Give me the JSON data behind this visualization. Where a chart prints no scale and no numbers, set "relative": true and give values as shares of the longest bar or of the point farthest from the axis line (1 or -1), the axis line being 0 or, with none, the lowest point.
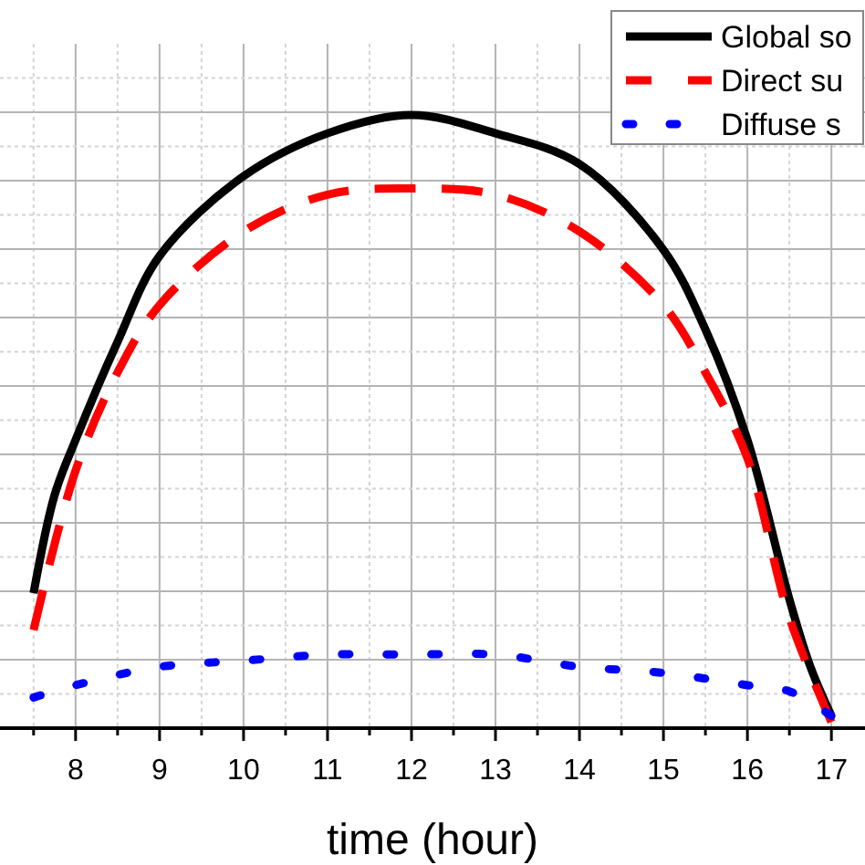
{
  "chart_data": {
    "type": "line",
    "relative": true,
    "xlabel": "time (hour)",
    "xlim": [
      7.1,
      17.4
    ],
    "xticks": [
      {
        "value": 7.5,
        "label": null
      },
      8,
      {
        "value": 8.5,
        "label": null
      },
      9,
      {
        "value": 9.5,
        "label": null
      },
      10,
      {
        "value": 10.5,
        "label": null
      },
      11,
      {
        "value": 11.5,
        "label": null
      },
      12,
      {
        "value": 12.5,
        "label": null
      },
      13,
      {
        "value": 13.5,
        "label": null
      },
      14,
      {
        "value": 14.5,
        "label": null
      },
      15,
      {
        "value": 15.5,
        "label": null
      },
      16,
      {
        "value": 16.5,
        "label": null
      },
      17
    ],
    "grid": true,
    "legend": "top right",
    "series": [
      {
        "name": "Global so",
        "color": "#000000",
        "line_style": "solid",
        "x": [
          7.5,
          7.75,
          8,
          8.5,
          9,
          10,
          11,
          12,
          13,
          14,
          15,
          15.5,
          16,
          16.5,
          16.75,
          17
        ],
        "values": [
          0.22,
          0.38,
          0.47,
          0.63,
          0.77,
          0.9,
          0.97,
          1,
          0.97,
          0.92,
          0.78,
          0.65,
          0.47,
          0.21,
          0.1,
          0.02
        ]
      },
      {
        "name": "Direct su",
        "color": "#ff0000",
        "line_style": "dashed",
        "x": [
          7.5,
          8,
          8.5,
          9,
          10,
          11,
          12,
          13,
          14,
          15,
          15.5,
          16,
          16.5,
          17
        ],
        "values": [
          0.16,
          0.42,
          0.58,
          0.69,
          0.81,
          0.87,
          0.88,
          0.87,
          0.81,
          0.69,
          0.58,
          0.44,
          0.18,
          0.01
        ]
      },
      {
        "name": "Diffuse s",
        "color": "#0000ff",
        "line_style": "dotted",
        "x": [
          7.5,
          8,
          9,
          10,
          11,
          12,
          13,
          14,
          15,
          16,
          16.5,
          17
        ],
        "values": [
          0.05,
          0.07,
          0.1,
          0.11,
          0.12,
          0.12,
          0.12,
          0.1,
          0.09,
          0.07,
          0.06,
          0.02
        ]
      }
    ]
  }
}
